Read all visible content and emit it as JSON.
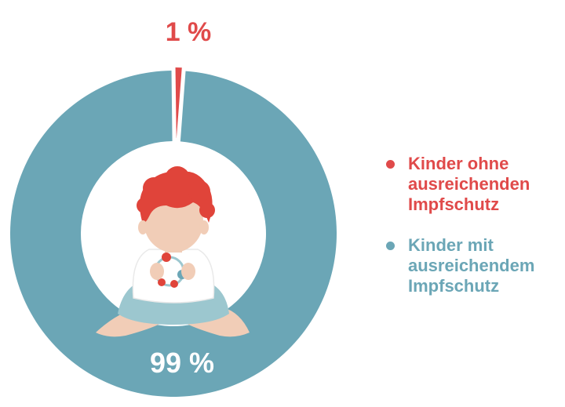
{
  "chart_data": {
    "type": "pie",
    "donut": true,
    "slices": [
      {
        "label": "Kinder ohne ausreichenden Impfschutz",
        "value": 1,
        "value_label": "1 %",
        "color": "#e04a4a"
      },
      {
        "label": "Kinder mit ausreichendem Impfschutz",
        "value": 99,
        "value_label": "99 %",
        "color": "#6ba6b6"
      }
    ],
    "legend": {
      "placement": "right",
      "entries": [
        {
          "lines": [
            "Kinder ohne",
            "ausreichenden",
            "Impfschutz"
          ],
          "color": "#e04a4a"
        },
        {
          "lines": [
            "Kinder mit",
            "ausreichendem",
            "Impfschutz"
          ],
          "color": "#6ba6b6"
        }
      ]
    },
    "center_image": "baby-with-toy-illustration"
  }
}
